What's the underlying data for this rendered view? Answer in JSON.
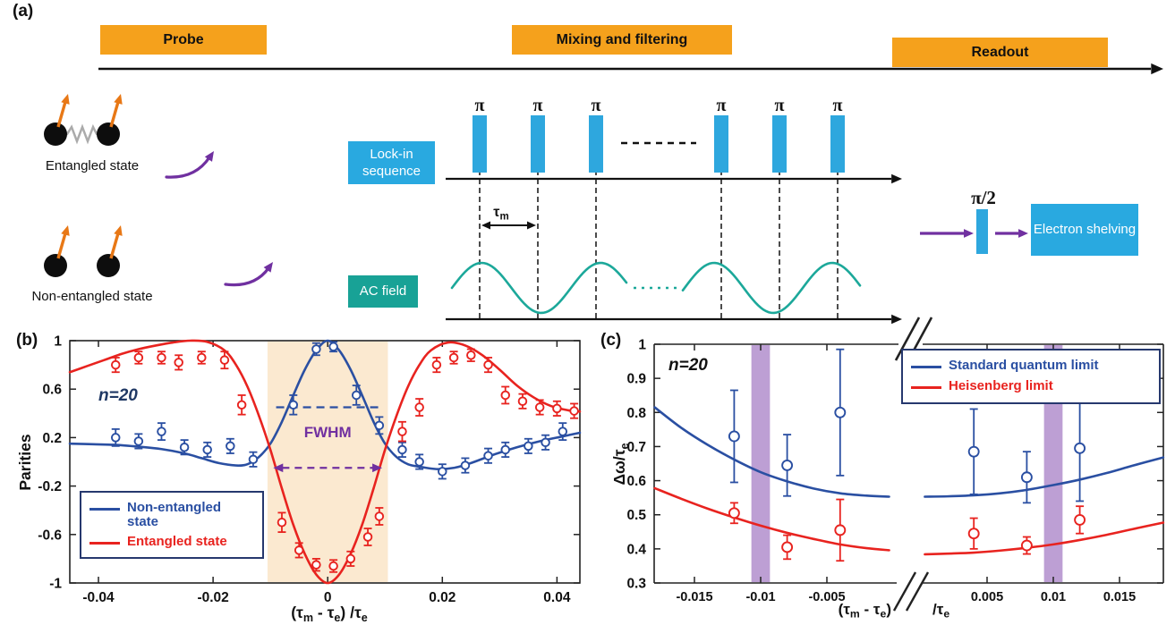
{
  "figure": {
    "panel_labels": {
      "a": "(a)",
      "b": "(b)",
      "c": "(c)"
    }
  },
  "panel_a": {
    "stages": [
      {
        "label": "Probe"
      },
      {
        "label": "Mixing and filtering"
      },
      {
        "label": "Readout"
      }
    ],
    "entangled_label": "Entangled state",
    "non_entangled_label": "Non-entangled state",
    "lockin_label": "Lock-in sequence",
    "ac_label": "AC field",
    "shelving_label": "Electron shelving",
    "pi": "π",
    "pi_half": "π/2",
    "tau_m_parts": [
      [
        "τ",
        0
      ],
      [
        "m",
        1
      ]
    ],
    "colors": {
      "stage_box": "#F5A11C",
      "signal_box": "#29A9E0",
      "ac_box": "#18A296",
      "pulse": "#2EA7DE",
      "sine": "#1CA89A",
      "purple": "#7030A0",
      "spin_arrow": "#E87816",
      "spring": "#ABABAB",
      "ball": "#0D0D0D"
    }
  },
  "chart_data": [
    {
      "id": "panel_b",
      "type": "line+scatter",
      "annotation": "n=20",
      "annotation_color": "#1F3864",
      "xlabel": "(τm - τe)/τe",
      "ylabel": "Parities",
      "xlabel_parts": [
        [
          "(τ",
          0
        ],
        [
          "m",
          1
        ],
        [
          " - τ",
          0
        ],
        [
          "e",
          1
        ],
        [
          ") /τ",
          0
        ],
        [
          "e",
          1
        ]
      ],
      "xlim": [
        -0.045,
        0.044
      ],
      "ylim": [
        -1,
        1
      ],
      "xticks": [
        -0.04,
        -0.02,
        0,
        0.02,
        0.04
      ],
      "xtick_labels": [
        "-0.04",
        "-0.02",
        "0",
        "0.02",
        "0.04"
      ],
      "yticks": [
        1,
        0.6,
        0.2,
        -0.2,
        -0.6,
        -1
      ],
      "ytick_labels": [
        "1",
        "0.6",
        "0.2",
        "-0.2",
        "-0.6",
        "-1"
      ],
      "band": [
        -0.0105,
        0.0105
      ],
      "band_color": "#FBE9D0",
      "fwhm_label": "FWHM",
      "fwhm_color": "#7030A0",
      "fwhm_arrow": {
        "y": -0.05,
        "x1": -0.0095,
        "x2": 0.0095
      },
      "halfmax_line": {
        "y": 0.45,
        "x1": -0.009,
        "x2": 0.009
      },
      "marker_r": 4.3,
      "series": [
        {
          "name": "Non-entangled state",
          "color": "#2A4FA2",
          "curve": [
            [
              -0.045,
              0.15
            ],
            [
              -0.041,
              0.145
            ],
            [
              -0.037,
              0.14
            ],
            [
              -0.033,
              0.125
            ],
            [
              -0.029,
              0.105
            ],
            [
              -0.025,
              0.07
            ],
            [
              -0.022,
              0.03
            ],
            [
              -0.019,
              -0.01
            ],
            [
              -0.016,
              -0.03
            ],
            [
              -0.014,
              -0.02
            ],
            [
              -0.012,
              0.04
            ],
            [
              -0.01,
              0.15
            ],
            [
              -0.008,
              0.33
            ],
            [
              -0.006,
              0.55
            ],
            [
              -0.004,
              0.76
            ],
            [
              -0.002,
              0.92
            ],
            [
              0,
              1.0
            ],
            [
              0.002,
              0.92
            ],
            [
              0.004,
              0.76
            ],
            [
              0.006,
              0.55
            ],
            [
              0.008,
              0.33
            ],
            [
              0.01,
              0.15
            ],
            [
              0.012,
              0.04
            ],
            [
              0.014,
              -0.02
            ],
            [
              0.016,
              -0.04
            ],
            [
              0.019,
              -0.06
            ],
            [
              0.022,
              -0.05
            ],
            [
              0.025,
              -0.01
            ],
            [
              0.029,
              0.06
            ],
            [
              0.033,
              0.12
            ],
            [
              0.037,
              0.17
            ],
            [
              0.041,
              0.21
            ],
            [
              0.044,
              0.24
            ]
          ],
          "points": [
            [
              -0.037,
              0.2,
              0.07
            ],
            [
              -0.033,
              0.17,
              0.06
            ],
            [
              -0.029,
              0.25,
              0.07
            ],
            [
              -0.025,
              0.12,
              0.06
            ],
            [
              -0.021,
              0.1,
              0.06
            ],
            [
              -0.017,
              0.13,
              0.06
            ],
            [
              -0.013,
              0.02,
              0.06
            ],
            [
              -0.006,
              0.47,
              0.08
            ],
            [
              -0.002,
              0.93,
              0.05
            ],
            [
              0.001,
              0.95,
              0.04
            ],
            [
              0.005,
              0.55,
              0.08
            ],
            [
              0.009,
              0.3,
              0.07
            ],
            [
              0.013,
              0.1,
              0.06
            ],
            [
              0.016,
              0.0,
              0.06
            ],
            [
              0.02,
              -0.08,
              0.06
            ],
            [
              0.024,
              -0.03,
              0.06
            ],
            [
              0.028,
              0.05,
              0.06
            ],
            [
              0.031,
              0.1,
              0.06
            ],
            [
              0.035,
              0.13,
              0.06
            ],
            [
              0.038,
              0.16,
              0.06
            ],
            [
              0.041,
              0.25,
              0.07
            ]
          ]
        },
        {
          "name": "Entangled state",
          "color": "#E8231F",
          "curve": [
            [
              -0.045,
              0.74
            ],
            [
              -0.042,
              0.79
            ],
            [
              -0.039,
              0.84
            ],
            [
              -0.036,
              0.89
            ],
            [
              -0.033,
              0.93
            ],
            [
              -0.03,
              0.96
            ],
            [
              -0.027,
              0.985
            ],
            [
              -0.024,
              1.0
            ],
            [
              -0.021,
              0.99
            ],
            [
              -0.018,
              0.92
            ],
            [
              -0.016,
              0.8
            ],
            [
              -0.014,
              0.62
            ],
            [
              -0.012,
              0.38
            ],
            [
              -0.01,
              0.1
            ],
            [
              -0.008,
              -0.22
            ],
            [
              -0.006,
              -0.52
            ],
            [
              -0.004,
              -0.76
            ],
            [
              -0.002,
              -0.93
            ],
            [
              0,
              -1.0
            ],
            [
              0.002,
              -0.93
            ],
            [
              0.004,
              -0.76
            ],
            [
              0.006,
              -0.52
            ],
            [
              0.008,
              -0.22
            ],
            [
              0.01,
              0.1
            ],
            [
              0.012,
              0.38
            ],
            [
              0.014,
              0.62
            ],
            [
              0.016,
              0.8
            ],
            [
              0.018,
              0.92
            ],
            [
              0.021,
              0.985
            ],
            [
              0.024,
              0.96
            ],
            [
              0.027,
              0.88
            ],
            [
              0.03,
              0.76
            ],
            [
              0.033,
              0.63
            ],
            [
              0.036,
              0.53
            ],
            [
              0.039,
              0.46
            ],
            [
              0.042,
              0.425
            ],
            [
              0.044,
              0.415
            ]
          ],
          "points": [
            [
              -0.037,
              0.8,
              0.06
            ],
            [
              -0.033,
              0.86,
              0.05
            ],
            [
              -0.029,
              0.86,
              0.05
            ],
            [
              -0.026,
              0.82,
              0.06
            ],
            [
              -0.022,
              0.86,
              0.05
            ],
            [
              -0.018,
              0.84,
              0.07
            ],
            [
              -0.015,
              0.47,
              0.08
            ],
            [
              -0.008,
              -0.5,
              0.08
            ],
            [
              -0.005,
              -0.73,
              0.06
            ],
            [
              -0.002,
              -0.85,
              0.05
            ],
            [
              0.001,
              -0.86,
              0.05
            ],
            [
              0.004,
              -0.8,
              0.06
            ],
            [
              0.007,
              -0.62,
              0.07
            ],
            [
              0.009,
              -0.45,
              0.07
            ],
            [
              0.013,
              0.25,
              0.08
            ],
            [
              0.016,
              0.45,
              0.07
            ],
            [
              0.019,
              0.8,
              0.06
            ],
            [
              0.022,
              0.86,
              0.05
            ],
            [
              0.025,
              0.88,
              0.05
            ],
            [
              0.028,
              0.8,
              0.06
            ],
            [
              0.031,
              0.55,
              0.07
            ],
            [
              0.034,
              0.5,
              0.06
            ],
            [
              0.037,
              0.45,
              0.06
            ],
            [
              0.04,
              0.44,
              0.06
            ],
            [
              0.043,
              0.42,
              0.06
            ]
          ]
        }
      ]
    },
    {
      "id": "panel_c",
      "type": "line+scatter",
      "annotation": "n=20",
      "xlabel": "(τm - τe)/τe",
      "ylabel": "Δω/τe",
      "ylabel_parts": [
        [
          "Δω/τ",
          0
        ],
        [
          "e",
          1
        ]
      ],
      "xlabel_left_parts": [
        [
          "(τ",
          0
        ],
        [
          "m",
          1
        ],
        [
          " - τ",
          0
        ],
        [
          "e",
          1
        ],
        [
          ")",
          0
        ]
      ],
      "xlabel_right_parts": [
        [
          "/τ",
          0
        ],
        [
          "e",
          1
        ]
      ],
      "ylim": [
        0.3,
        1.0
      ],
      "yticks": [
        1,
        0.9,
        0.8,
        0.7,
        0.6,
        0.5,
        0.4,
        0.3
      ],
      "ytick_labels": [
        "1",
        "0.9",
        "0.8",
        "0.7",
        "0.6",
        "0.5",
        "0.4",
        "0.3"
      ],
      "xticks_left": [
        -0.015,
        -0.01,
        -0.005
      ],
      "xtick_left_labels": [
        "-0.015",
        "-0.01",
        "-0.005"
      ],
      "xticks_right": [
        0.005,
        0.01,
        0.015
      ],
      "xtick_right_labels": [
        "0.005",
        "0.01",
        "0.015"
      ],
      "axis_break": true,
      "bands": [
        [
          -0.0107,
          -0.0093
        ],
        [
          0.0093,
          0.0107
        ]
      ],
      "band_color": "#A77FC6",
      "marker_r": 5.5,
      "series": [
        {
          "name": "Standard quantum limit",
          "color": "#2A4FA2",
          "curve_left": [
            [
              -0.018,
              0.815
            ],
            [
              -0.016,
              0.755
            ],
            [
              -0.014,
              0.705
            ],
            [
              -0.012,
              0.662
            ],
            [
              -0.01,
              0.625
            ],
            [
              -0.008,
              0.598
            ],
            [
              -0.006,
              0.577
            ],
            [
              -0.004,
              0.563
            ],
            [
              -0.002,
              0.556
            ],
            [
              -0.0003,
              0.553
            ]
          ],
          "curve_right": [
            [
              0.0003,
              0.553
            ],
            [
              0.002,
              0.554
            ],
            [
              0.004,
              0.557
            ],
            [
              0.006,
              0.563
            ],
            [
              0.008,
              0.573
            ],
            [
              0.01,
              0.587
            ],
            [
              0.012,
              0.603
            ],
            [
              0.014,
              0.622
            ],
            [
              0.016,
              0.644
            ],
            [
              0.0183,
              0.668
            ]
          ],
          "points": [
            [
              -0.012,
              0.73,
              0.135
            ],
            [
              -0.008,
              0.645,
              0.09
            ],
            [
              -0.004,
              0.8,
              0.185
            ],
            [
              0.004,
              0.685,
              0.125
            ],
            [
              0.008,
              0.61,
              0.075
            ],
            [
              0.012,
              0.695,
              0.155
            ]
          ]
        },
        {
          "name": "Heisenberg limit",
          "color": "#E8231F",
          "curve_left": [
            [
              -0.018,
              0.578
            ],
            [
              -0.016,
              0.547
            ],
            [
              -0.014,
              0.518
            ],
            [
              -0.012,
              0.492
            ],
            [
              -0.01,
              0.468
            ],
            [
              -0.008,
              0.447
            ],
            [
              -0.006,
              0.429
            ],
            [
              -0.004,
              0.413
            ],
            [
              -0.002,
              0.402
            ],
            [
              -0.0003,
              0.396
            ]
          ],
          "curve_right": [
            [
              0.0003,
              0.384
            ],
            [
              0.002,
              0.386
            ],
            [
              0.004,
              0.389
            ],
            [
              0.006,
              0.395
            ],
            [
              0.008,
              0.403
            ],
            [
              0.01,
              0.413
            ],
            [
              0.012,
              0.426
            ],
            [
              0.014,
              0.441
            ],
            [
              0.016,
              0.458
            ],
            [
              0.0183,
              0.477
            ]
          ],
          "points": [
            [
              -0.012,
              0.505,
              0.03
            ],
            [
              -0.008,
              0.405,
              0.035
            ],
            [
              -0.004,
              0.455,
              0.09
            ],
            [
              0.004,
              0.445,
              0.045
            ],
            [
              0.008,
              0.41,
              0.025
            ],
            [
              0.012,
              0.485,
              0.04
            ]
          ]
        }
      ]
    }
  ]
}
